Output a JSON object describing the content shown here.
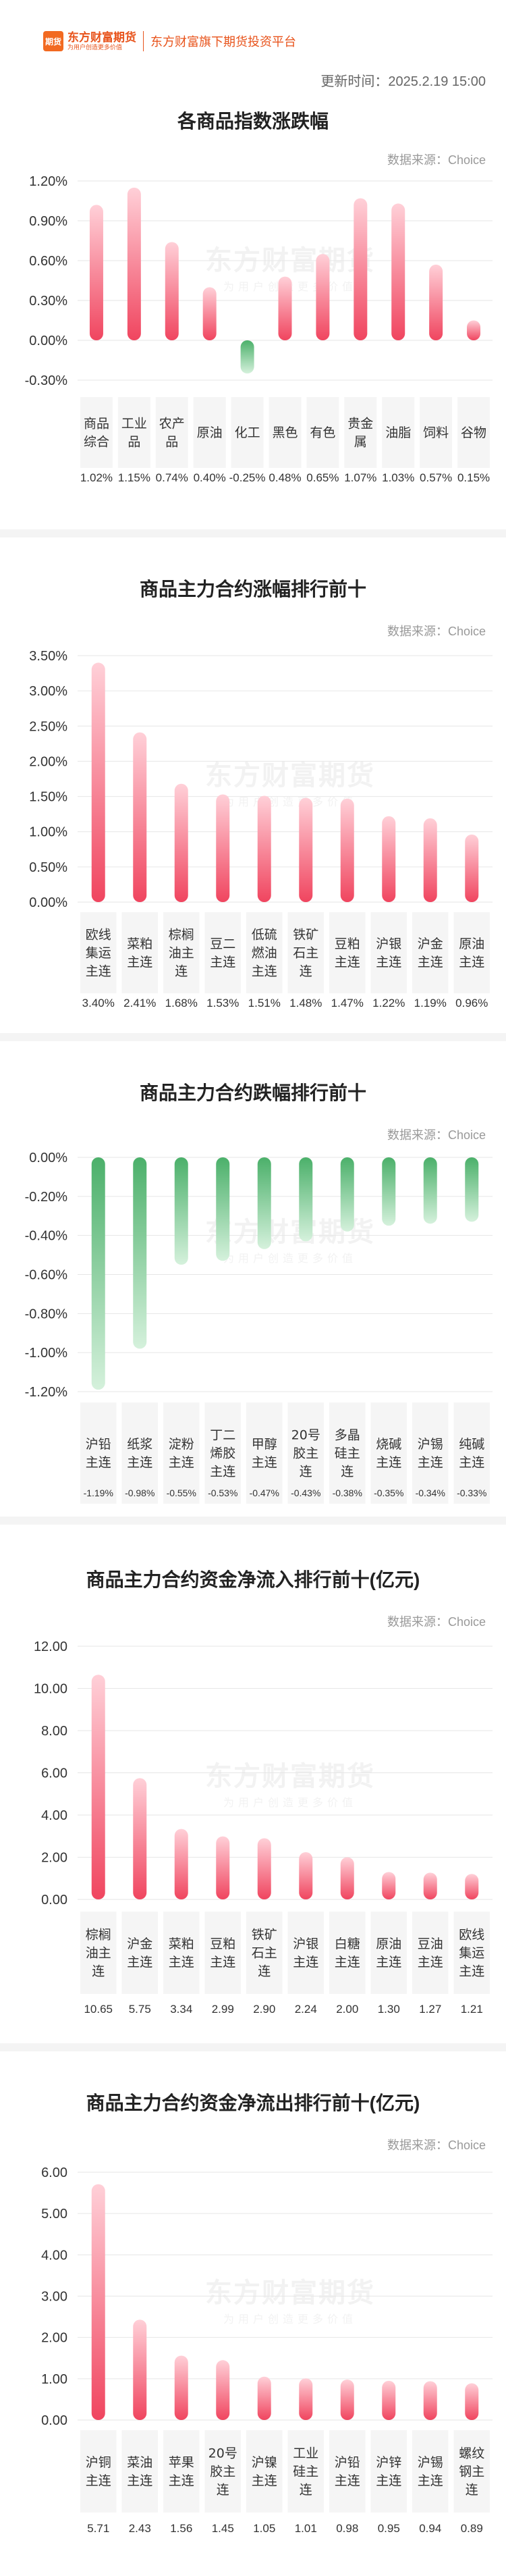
{
  "header": {
    "logo_badge": "期货",
    "logo_name": "东方财富期货",
    "logo_slogan": "为用户创造更多价值",
    "tagline": "东方财富旗下期货投资平台",
    "update_time": "更新时间：2025.2.19 15:00"
  },
  "source_label": "数据来源：Choice",
  "watermark": {
    "big": "东方财富期货",
    "small": "为用户创造更多价值"
  },
  "colors": {
    "positive": "#f0455f",
    "positive_light": "#ffd0d8",
    "negative": "#4bb06a",
    "negative_light": "#d5f1dc",
    "grid": "#e6e6e6",
    "cell_bg": "#f5f5f5"
  },
  "chart_data": [
    {
      "type": "bar",
      "title": "各商品指数涨跌幅",
      "categories": [
        "商品综合",
        "工业品",
        "农产品",
        "原油",
        "化工",
        "黑色",
        "有色",
        "贵金属",
        "油脂",
        "饲料",
        "谷物"
      ],
      "values": [
        1.02,
        1.15,
        0.74,
        0.4,
        -0.25,
        0.48,
        0.65,
        1.07,
        1.03,
        0.57,
        0.15
      ],
      "value_labels": [
        "1.02%",
        "1.15%",
        "0.74%",
        "0.40%",
        "-0.25%",
        "0.48%",
        "0.65%",
        "1.07%",
        "1.03%",
        "0.57%",
        "0.15%"
      ],
      "yticks": [
        "1.20%",
        "0.90%",
        "0.60%",
        "0.30%",
        "0.00%",
        "-0.30%"
      ],
      "ylim": [
        -0.3,
        1.2
      ],
      "grid": true
    },
    {
      "type": "bar",
      "title": "商品主力合约涨幅排行前十",
      "categories": [
        "欧线集运主连",
        "菜粕主连",
        "棕榈油主连",
        "豆二主连",
        "低硫燃油主连",
        "铁矿石主连",
        "豆粕主连",
        "沪银主连",
        "沪金主连",
        "原油主连"
      ],
      "values": [
        3.4,
        2.41,
        1.68,
        1.53,
        1.51,
        1.48,
        1.47,
        1.22,
        1.19,
        0.96
      ],
      "value_labels": [
        "3.40%",
        "2.41%",
        "1.68%",
        "1.53%",
        "1.51%",
        "1.48%",
        "1.47%",
        "1.22%",
        "1.19%",
        "0.96%"
      ],
      "yticks": [
        "3.50%",
        "3.00%",
        "2.50%",
        "2.00%",
        "1.50%",
        "1.00%",
        "0.50%",
        "0.00%"
      ],
      "ylim": [
        0,
        3.5
      ],
      "grid": true
    },
    {
      "type": "bar",
      "title": "商品主力合约跌幅排行前十",
      "categories": [
        "沪铅主连",
        "纸浆主连",
        "淀粉主连",
        "丁二烯胶主连",
        "甲醇主连",
        "20号胶主连",
        "多晶硅主连",
        "烧碱主连",
        "沪锡主连",
        "纯碱主连"
      ],
      "values": [
        -1.19,
        -0.98,
        -0.55,
        -0.53,
        -0.47,
        -0.43,
        -0.38,
        -0.35,
        -0.34,
        -0.33
      ],
      "value_labels": [
        "-1.19%",
        "-0.98%",
        "-0.55%",
        "-0.53%",
        "-0.47%",
        "-0.43%",
        "-0.38%",
        "-0.35%",
        "-0.34%",
        "-0.33%"
      ],
      "yticks": [
        "0.00%",
        "-0.20%",
        "-0.40%",
        "-0.60%",
        "-0.80%",
        "-1.00%",
        "-1.20%"
      ],
      "ylim": [
        -1.2,
        0
      ],
      "grid": true
    },
    {
      "type": "bar",
      "title": "商品主力合约资金净流入排行前十(亿元)",
      "categories": [
        "棕榈油主连",
        "沪金主连",
        "菜粕主连",
        "豆粕主连",
        "铁矿石主连",
        "沪银主连",
        "白糖主连",
        "原油主连",
        "豆油主连",
        "欧线集运主连"
      ],
      "values": [
        10.65,
        5.75,
        3.34,
        2.99,
        2.9,
        2.24,
        2.0,
        1.3,
        1.27,
        1.21
      ],
      "value_labels": [
        "10.65",
        "5.75",
        "3.34",
        "2.99",
        "2.90",
        "2.24",
        "2.00",
        "1.30",
        "1.27",
        "1.21"
      ],
      "yticks": [
        "12.00",
        "10.00",
        "8.00",
        "6.00",
        "4.00",
        "2.00",
        "0.00"
      ],
      "ylim": [
        0,
        12
      ],
      "grid": true
    },
    {
      "type": "bar",
      "title": "商品主力合约资金净流出排行前十(亿元)",
      "categories": [
        "沪铜主连",
        "菜油主连",
        "苹果主连",
        "20号胶主连",
        "沪镍主连",
        "工业硅主连",
        "沪铅主连",
        "沪锌主连",
        "沪锡主连",
        "螺纹钢主连"
      ],
      "values": [
        5.71,
        2.43,
        1.56,
        1.45,
        1.05,
        1.01,
        0.98,
        0.95,
        0.94,
        0.89
      ],
      "value_labels": [
        "5.71",
        "2.43",
        "1.56",
        "1.45",
        "1.05",
        "1.01",
        "0.98",
        "0.95",
        "0.94",
        "0.89"
      ],
      "yticks": [
        "6.00",
        "5.00",
        "4.00",
        "3.00",
        "2.00",
        "1.00",
        "0.00"
      ],
      "ylim": [
        0,
        6
      ],
      "grid": true
    }
  ]
}
